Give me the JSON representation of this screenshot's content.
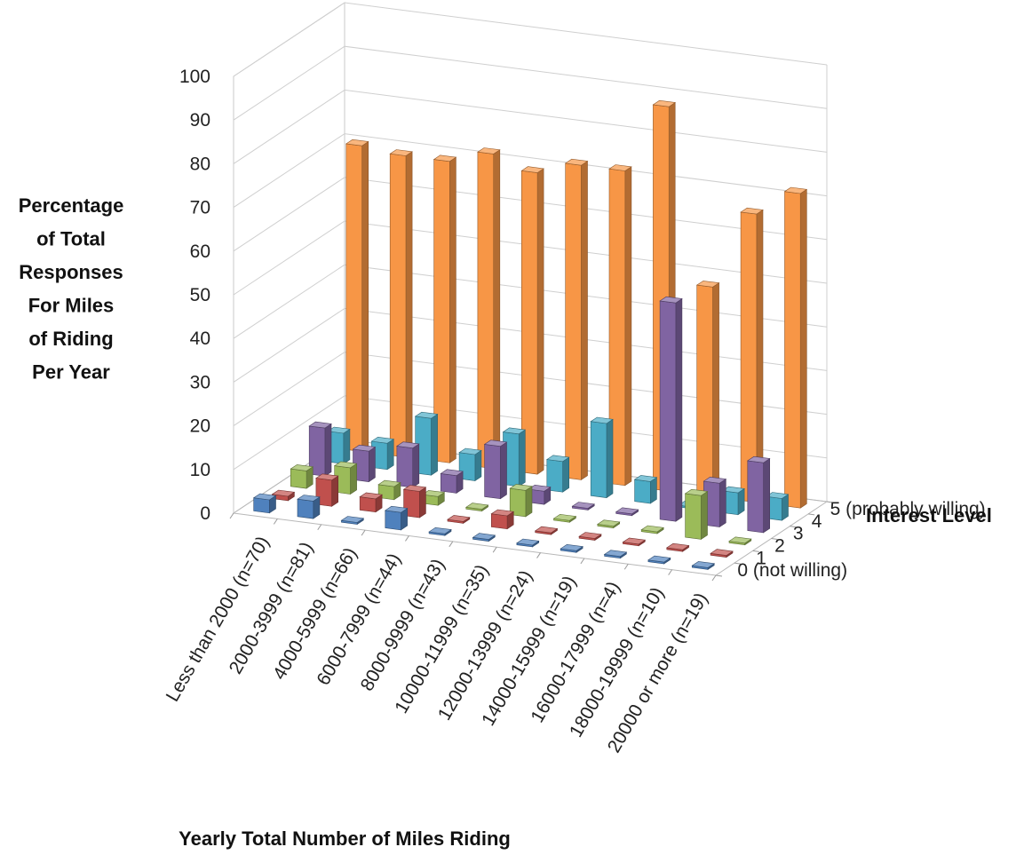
{
  "chart_data": {
    "type": "bar",
    "variant": "3d-column",
    "title": "",
    "ylabel": "Percentage of Total Responses For Miles of Riding Per Year",
    "ylabel_lines": [
      "Percentage",
      "of Total",
      "Responses",
      "For Miles",
      "of Riding",
      "Per Year"
    ],
    "xlabel": "Yearly Total Number of Miles Riding",
    "zlabel": "Interest Level",
    "ylim": [
      0,
      100
    ],
    "y_ticks": [
      "0",
      "10",
      "20",
      "30",
      "40",
      "50",
      "60",
      "70",
      "80",
      "90",
      "100"
    ],
    "categories": [
      "Less than 2000  (n=70)",
      "2000-3999  (n=81)",
      "4000-5999  (n=66)",
      "6000-7999  (n=44)",
      "8000-9999  (n=43)",
      "10000-11999  (n=35)",
      "12000-13999  (n=24)",
      "14000-15999  (n=19)",
      "16000-17999  (n=4)",
      "18000-19999  (n=10)",
      "20000 or more  (n=19)"
    ],
    "depth_labels": [
      "0 (not willing)",
      "1",
      "2",
      "3",
      "4",
      "5 (probably willing)"
    ],
    "grid": true,
    "legend": "none",
    "series": [
      {
        "name": "0 (not willing)",
        "color": "#4f81bd",
        "values": [
          3,
          4,
          0,
          4,
          0,
          0,
          0,
          0,
          0,
          0,
          0
        ]
      },
      {
        "name": "1",
        "color": "#c0504d",
        "values": [
          1,
          6,
          3,
          6,
          0,
          3,
          0,
          0,
          0,
          0,
          0
        ]
      },
      {
        "name": "2",
        "color": "#9bbb59",
        "values": [
          4,
          6,
          3,
          2,
          0,
          6,
          0,
          0,
          0,
          10,
          0
        ]
      },
      {
        "name": "3",
        "color": "#8064a2",
        "values": [
          11,
          7,
          9,
          4,
          12,
          3,
          0,
          0,
          50,
          10,
          16
        ]
      },
      {
        "name": "4",
        "color": "#4bacc6",
        "values": [
          7,
          6,
          13,
          6,
          12,
          7,
          17,
          5,
          0,
          5,
          5
        ]
      },
      {
        "name": "5 (probably willing)",
        "color": "#f79646",
        "values": [
          70,
          69,
          69,
          72,
          69,
          72,
          72,
          88,
          48,
          66,
          72
        ]
      }
    ]
  }
}
